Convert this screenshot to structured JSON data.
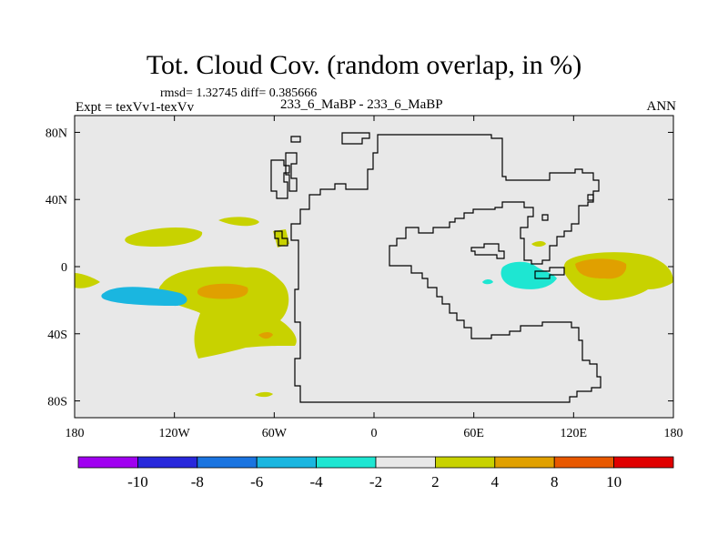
{
  "title": "Tot. Cloud Cov. (random overlap, in %)",
  "stats": "rmsd= 1.32745 diff= 0.385666",
  "experiment": "Expt = texVv1-texVv",
  "case_label": "233_6_MaBP - 233_6_MaBP",
  "season": "ANN",
  "colors": {
    "background": "#e8e8e8",
    "coast": "#000000",
    "lt_m4": "#1ee6d2",
    "lt_m6": "#1ab6e0",
    "gt_2": "#c8d200",
    "gt_4": "#e0a000",
    "gt_8": "#e85800"
  },
  "chart_data": {
    "type": "map",
    "variable": "Total cloud cover difference",
    "units": "%",
    "lon_range": [
      -180,
      180
    ],
    "lat_range": [
      -90,
      90
    ],
    "x_ticks": [
      "180",
      "120W",
      "60W",
      "0",
      "60E",
      "120E",
      "180"
    ],
    "x_tick_values": [
      -180,
      -120,
      -60,
      0,
      60,
      120,
      180
    ],
    "y_ticks": [
      "80N",
      "40N",
      "0",
      "40S",
      "80S"
    ],
    "y_tick_values": [
      80,
      40,
      0,
      -40,
      -80
    ],
    "colorbar": {
      "bins": [
        {
          "color": "#a000f0",
          "range": "< -10"
        },
        {
          "color": "#2828dc",
          "range": "-10 to -8"
        },
        {
          "color": "#1a74e0",
          "range": "-8 to -6"
        },
        {
          "color": "#1ab6e0",
          "range": "-6 to -4"
        },
        {
          "color": "#1ee6d2",
          "range": "-4 to -2"
        },
        {
          "color": "#e8e8e8",
          "range": "-2 to 2"
        },
        {
          "color": "#c8d200",
          "range": "2 to 4"
        },
        {
          "color": "#e0a000",
          "range": "4 to 8"
        },
        {
          "color": "#e85800",
          "range": "8 to 10"
        },
        {
          "color": "#e00000",
          "range": "> 10"
        }
      ],
      "labels": [
        "-10",
        "-8",
        "-6",
        "-4",
        "-2",
        "2",
        "4",
        "8",
        "10"
      ]
    },
    "features": [
      {
        "name": "positive anomaly",
        "lon": 145,
        "lat": -5,
        "value_range": "4 to 8"
      },
      {
        "name": "positive anomaly",
        "lon": -90,
        "lat": -15,
        "value_range": "4 to 8"
      },
      {
        "name": "negative anomaly",
        "lon": 95,
        "lat": -5,
        "value_range": "-4 to -2"
      },
      {
        "name": "negative anomaly",
        "lon": -130,
        "lat": -15,
        "value_range": "-6 to -4"
      },
      {
        "name": "positive anomaly",
        "lon": -130,
        "lat": 15,
        "value_range": "2 to 4"
      }
    ]
  }
}
